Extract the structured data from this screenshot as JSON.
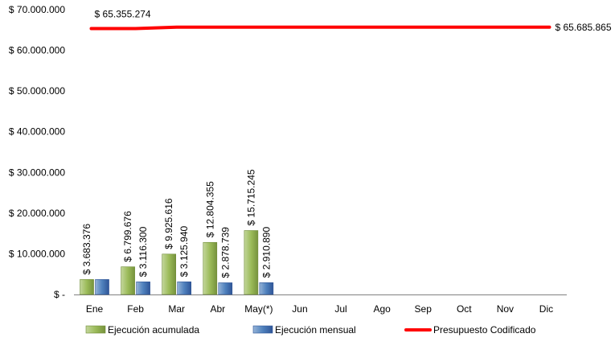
{
  "chart_data": {
    "type": "bar",
    "categories": [
      "Ene",
      "Feb",
      "Mar",
      "Abr",
      "May(*)",
      "Jun",
      "Jul",
      "Ago",
      "Sep",
      "Oct",
      "Nov",
      "Dic"
    ],
    "ylim": [
      0,
      70000000
    ],
    "yticks": [
      0,
      10000000,
      20000000,
      30000000,
      40000000,
      50000000,
      60000000,
      70000000
    ],
    "ytick_labels": [
      "$ -",
      "$ 10.000.000",
      "$ 20.000.000",
      "$ 30.000.000",
      "$ 40.000.000",
      "$ 50.000.000",
      "$ 60.000.000",
      "$ 70.000.000"
    ],
    "grid": false,
    "legend_position": "bottom",
    "series": [
      {
        "name": "Ejecución acumulada",
        "kind": "bar",
        "color": "#9BBB59",
        "values": [
          3683376,
          6799676,
          9925616,
          12804355,
          15715245,
          null,
          null,
          null,
          null,
          null,
          null,
          null
        ],
        "labels": [
          "$ 3.683.376",
          "$ 6.799.676",
          "$ 9.925.616",
          "$ 12.804.355",
          "$ 15.715.245"
        ]
      },
      {
        "name": "Ejecución mensual",
        "kind": "bar",
        "color": "#4F81BD",
        "values": [
          3683376,
          3116300,
          3125940,
          2878739,
          2910890,
          null,
          null,
          null,
          null,
          null,
          null,
          null
        ],
        "labels": [
          "",
          "$ 3.116.300",
          "$ 3.125.940",
          "$ 2.878.739",
          "$ 2.910.890"
        ]
      },
      {
        "name": "Presupuesto Codificado",
        "kind": "line",
        "color": "#FF0000",
        "values": [
          65355274,
          65355274,
          65685865,
          65685865,
          65685865,
          65685865,
          65685865,
          65685865,
          65685865,
          65685865,
          65685865,
          65685865
        ],
        "start_label": "$ 65.355.274",
        "end_label": "$ 65.685.865"
      }
    ]
  }
}
